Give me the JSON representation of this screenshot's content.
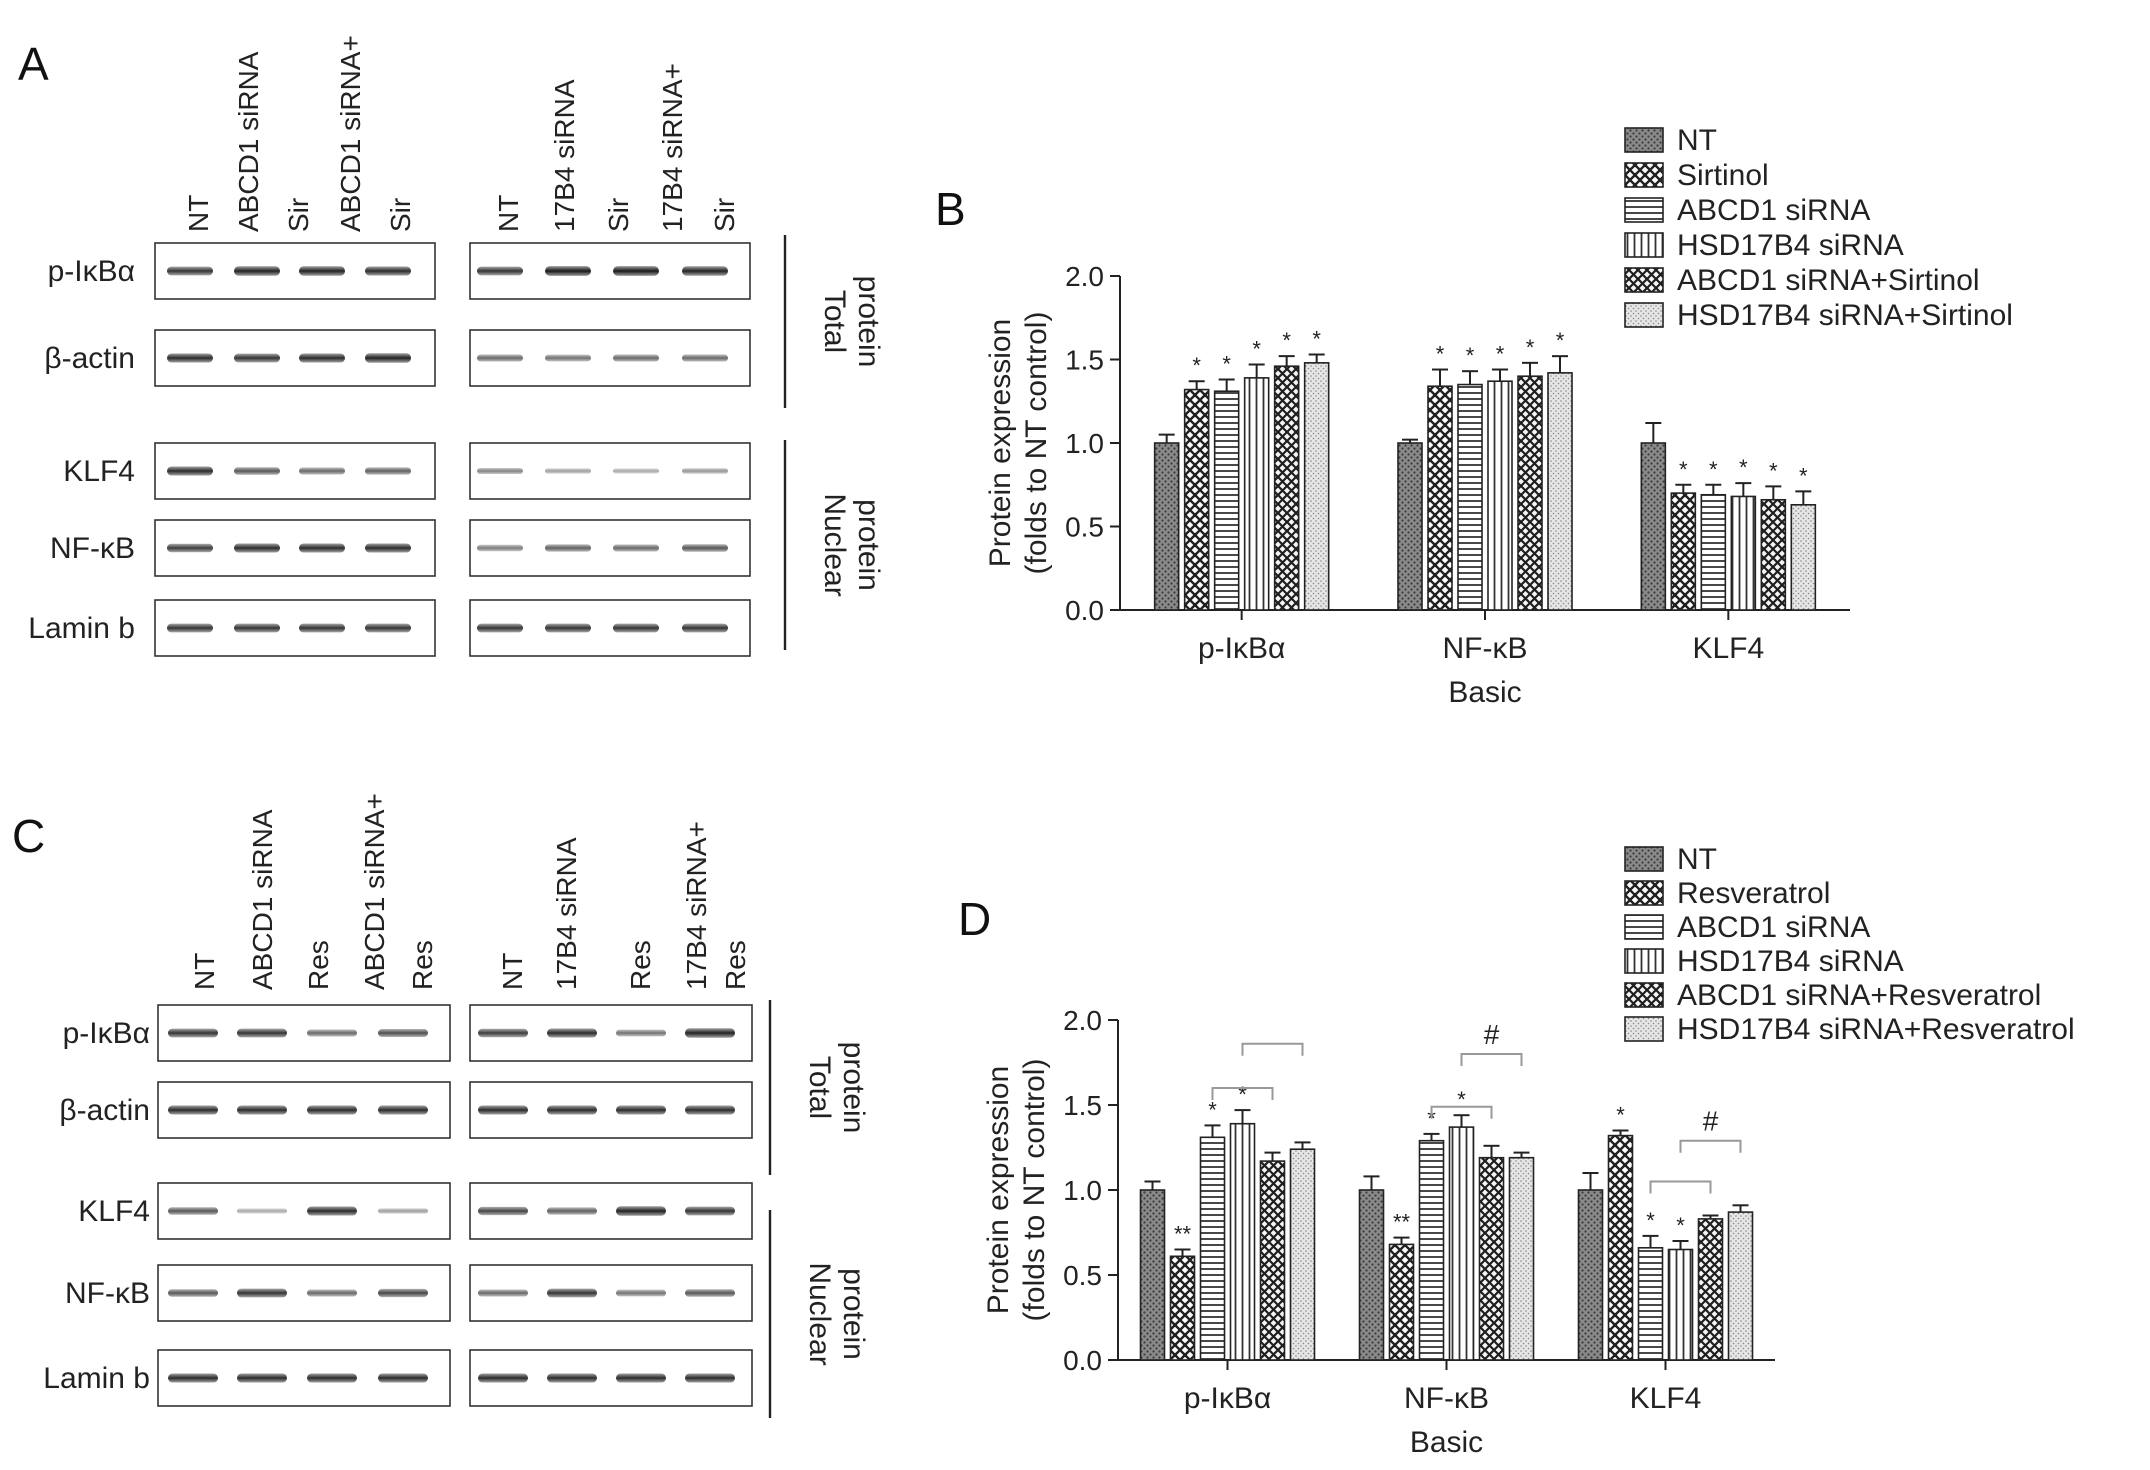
{
  "figure": {
    "panels": {
      "A": "A",
      "B": "B",
      "C": "C",
      "D": "D"
    }
  },
  "blot_A": {
    "lanes_left": [
      "NT",
      "ABCD1 siRNA",
      "Sir",
      "ABCD1 siRNA+",
      "Sir"
    ],
    "lanes_right": [
      "NT",
      "17B4 siRNA",
      "Sir",
      "17B4 siRNA+",
      "Sir"
    ],
    "rows": [
      "p-IκBα",
      "β-actin",
      "KLF4",
      "NF-κB",
      "Lamin b"
    ],
    "group_total": [
      "Total",
      "protein"
    ],
    "group_nuclear": [
      "Nuclear",
      "protein"
    ]
  },
  "blot_C": {
    "lanes_left": [
      "NT",
      "ABCD1 siRNA",
      "Res",
      "ABCD1 siRNA+",
      "Res"
    ],
    "lanes_right": [
      "NT",
      "17B4 siRNA",
      "Res",
      "17B4 siRNA+",
      "Res"
    ],
    "rows": [
      "p-IκBα",
      "β-actin",
      "KLF4",
      "NF-κB",
      "Lamin b"
    ],
    "group_total": [
      "Total",
      "protein"
    ],
    "group_nuclear": [
      "Nuclear",
      "protein"
    ]
  },
  "chart_data": [
    {
      "panel": "B",
      "type": "bar",
      "categories": [
        "p-IκBα",
        "NF-κB",
        "KLF4"
      ],
      "xlabel": "Basic",
      "ylabel": [
        "Protein expression",
        "(folds to NT control)"
      ],
      "ylim": [
        0,
        2.0
      ],
      "yticks": [
        "0.0",
        "0.5",
        "1.0",
        "1.5",
        "2.0"
      ],
      "legend_position": "top-right",
      "series": [
        {
          "name": "NT",
          "values": [
            1.0,
            1.0,
            1.0
          ],
          "errors": [
            0.05,
            0.02,
            0.12
          ],
          "marks": [
            "",
            "",
            ""
          ],
          "pattern": "dots"
        },
        {
          "name": "Sirtinol",
          "values": [
            1.32,
            1.34,
            0.7
          ],
          "errors": [
            0.05,
            0.1,
            0.05
          ],
          "marks": [
            "*",
            "*",
            "*"
          ],
          "pattern": "checker"
        },
        {
          "name": "ABCD1 siRNA",
          "values": [
            1.31,
            1.35,
            0.69
          ],
          "errors": [
            0.07,
            0.08,
            0.06
          ],
          "marks": [
            "*",
            "*",
            "*"
          ],
          "pattern": "hlines"
        },
        {
          "name": "HSD17B4 siRNA",
          "values": [
            1.39,
            1.37,
            0.68
          ],
          "errors": [
            0.08,
            0.07,
            0.08
          ],
          "marks": [
            "*",
            "*",
            "*"
          ],
          "pattern": "vlines"
        },
        {
          "name": "ABCD1 siRNA+Sirtinol",
          "values": [
            1.46,
            1.4,
            0.66
          ],
          "errors": [
            0.06,
            0.08,
            0.08
          ],
          "marks": [
            "*",
            "*",
            "*"
          ],
          "pattern": "crosshatch"
        },
        {
          "name": "HSD17B4 siRNA+Sirtinol",
          "values": [
            1.48,
            1.42,
            0.63
          ],
          "errors": [
            0.05,
            0.1,
            0.08
          ],
          "marks": [
            "*",
            "*",
            "*"
          ],
          "pattern": "speckle"
        }
      ],
      "brackets": []
    },
    {
      "panel": "D",
      "type": "bar",
      "categories": [
        "p-IκBα",
        "NF-κB",
        "KLF4"
      ],
      "xlabel": "Basic",
      "ylabel": [
        "Protein expression",
        "(folds to NT control)"
      ],
      "ylim": [
        0,
        2.0
      ],
      "yticks": [
        "0.0",
        "0.5",
        "1.0",
        "1.5",
        "2.0"
      ],
      "legend_position": "top-right",
      "series": [
        {
          "name": "NT",
          "values": [
            1.0,
            1.0,
            1.0
          ],
          "errors": [
            0.05,
            0.08,
            0.1
          ],
          "marks": [
            "",
            "",
            ""
          ],
          "pattern": "dots"
        },
        {
          "name": "Resveratrol",
          "values": [
            0.61,
            0.68,
            1.32
          ],
          "errors": [
            0.04,
            0.04,
            0.03
          ],
          "marks": [
            "**",
            "**",
            "*"
          ],
          "pattern": "checker"
        },
        {
          "name": "ABCD1 siRNA",
          "values": [
            1.31,
            1.29,
            0.66
          ],
          "errors": [
            0.07,
            0.04,
            0.07
          ],
          "marks": [
            "*",
            "*",
            "*"
          ],
          "pattern": "hlines"
        },
        {
          "name": "HSD17B4 siRNA",
          "values": [
            1.39,
            1.37,
            0.65
          ],
          "errors": [
            0.08,
            0.07,
            0.05
          ],
          "marks": [
            "*",
            "*",
            "*"
          ],
          "pattern": "vlines"
        },
        {
          "name": "ABCD1 siRNA+Resveratrol",
          "values": [
            1.17,
            1.19,
            0.83
          ],
          "errors": [
            0.05,
            0.07,
            0.02
          ],
          "marks": [
            "",
            "",
            ""
          ],
          "pattern": "crosshatch"
        },
        {
          "name": "HSD17B4 siRNA+Resveratrol",
          "values": [
            1.24,
            1.19,
            0.87
          ],
          "errors": [
            0.04,
            0.03,
            0.04
          ],
          "marks": [
            "",
            "",
            ""
          ],
          "pattern": "speckle"
        }
      ],
      "brackets": [
        {
          "category": 0,
          "from": 2,
          "to": 4,
          "y": 1.6,
          "label": ""
        },
        {
          "category": 0,
          "from": 3,
          "to": 5,
          "y": 1.86,
          "label": ""
        },
        {
          "category": 1,
          "from": 2,
          "to": 4,
          "y": 1.49,
          "label": ""
        },
        {
          "category": 1,
          "from": 3,
          "to": 5,
          "y": 1.8,
          "label": "#"
        },
        {
          "category": 2,
          "from": 2,
          "to": 4,
          "y": 1.05,
          "label": ""
        },
        {
          "category": 2,
          "from": 3,
          "to": 5,
          "y": 1.29,
          "label": "#"
        }
      ]
    }
  ]
}
